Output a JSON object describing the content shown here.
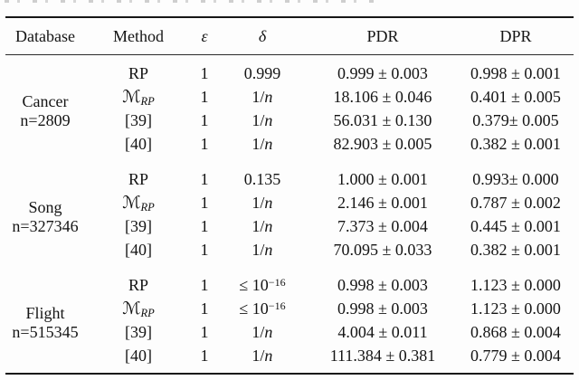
{
  "colors": {
    "background": "#fdfdfd",
    "text": "#141414",
    "rule": "#161616"
  },
  "table": {
    "columns": [
      {
        "key": "database",
        "label": "Database",
        "italic": false
      },
      {
        "key": "method",
        "label": "Method",
        "italic": false
      },
      {
        "key": "epsilon",
        "label": "ε",
        "italic": true
      },
      {
        "key": "delta",
        "label": "δ",
        "italic": true
      },
      {
        "key": "pdr",
        "label": "PDR",
        "italic": false
      },
      {
        "key": "dpr",
        "label": "DPR",
        "italic": false
      }
    ],
    "blocks": [
      {
        "database": {
          "name": "Cancer",
          "size": "n=2809"
        },
        "rows": [
          {
            "method": "RP",
            "epsilon": "1",
            "delta": "0.999",
            "pdr": "0.999 ± 0.003",
            "dpr": "0.998 ± 0.001"
          },
          {
            "method": {
              "t": "ℳ",
              "sub": "RP",
              "cal": true
            },
            "epsilon": "1",
            "delta": {
              "t": "1/",
              "it": "n"
            },
            "pdr": "18.106 ± 0.046",
            "dpr": "0.401 ± 0.005"
          },
          {
            "method": "[39]",
            "epsilon": "1",
            "delta": {
              "t": "1/",
              "it": "n"
            },
            "pdr": "56.031 ± 0.130",
            "dpr": "0.379± 0.005"
          },
          {
            "method": "[40]",
            "epsilon": "1",
            "delta": {
              "t": "1/",
              "it": "n"
            },
            "pdr": "82.903 ± 0.005",
            "dpr": "0.382 ± 0.001"
          }
        ]
      },
      {
        "database": {
          "name": "Song",
          "size": "n=327346"
        },
        "rows": [
          {
            "method": "RP",
            "epsilon": "1",
            "delta": "0.135",
            "pdr": "1.000 ± 0.001",
            "dpr": "0.993± 0.000"
          },
          {
            "method": {
              "t": "ℳ",
              "sub": "RP",
              "cal": true
            },
            "epsilon": "1",
            "delta": {
              "t": "1/",
              "it": "n"
            },
            "pdr": "2.146 ± 0.001",
            "dpr": "0.787 ± 0.002"
          },
          {
            "method": "[39]",
            "epsilon": "1",
            "delta": {
              "t": "1/",
              "it": "n"
            },
            "pdr": "7.373 ± 0.004",
            "dpr": "0.445 ± 0.001"
          },
          {
            "method": "[40]",
            "epsilon": "1",
            "delta": {
              "t": "1/",
              "it": "n"
            },
            "pdr": "70.095 ± 0.033",
            "dpr": "0.382 ± 0.001"
          }
        ]
      },
      {
        "database": {
          "name": "Flight",
          "size": "n=515345"
        },
        "rows": [
          {
            "method": "RP",
            "epsilon": "1",
            "delta": {
              "t": "≤ 10",
              "sup": "−16"
            },
            "pdr": "0.998 ± 0.003",
            "dpr": "1.123 ± 0.000"
          },
          {
            "method": {
              "t": "ℳ",
              "sub": "RP",
              "cal": true
            },
            "epsilon": "1",
            "delta": {
              "t": "≤ 10",
              "sup": "−16"
            },
            "pdr": "0.998 ± 0.003",
            "dpr": "1.123 ± 0.000"
          },
          {
            "method": "[39]",
            "epsilon": "1",
            "delta": {
              "t": "1/",
              "it": "n"
            },
            "pdr": "4.004 ± 0.011",
            "dpr": "0.868 ± 0.004"
          },
          {
            "method": "[40]",
            "epsilon": "1",
            "delta": {
              "t": "1/",
              "it": "n"
            },
            "pdr": "111.384 ± 0.381",
            "dpr": "0.779 ± 0.004"
          }
        ]
      }
    ]
  }
}
